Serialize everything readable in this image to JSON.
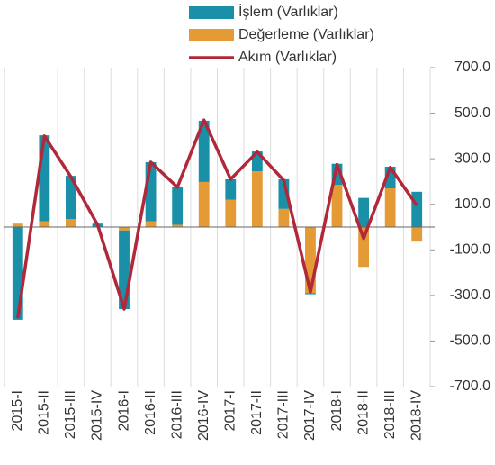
{
  "chart_data": {
    "type": "bar",
    "categories": [
      "2015-I",
      "2015-II",
      "2015-III",
      "2015-IV",
      "2016-I",
      "2016-II",
      "2016-III",
      "2016-IV",
      "2017-I",
      "2017-II",
      "2017-III",
      "2017-IV",
      "2018-I",
      "2018-II",
      "2018-III",
      "2018-IV"
    ],
    "series": [
      {
        "name": "Değerleme (Varlıklar)",
        "color": "#e49a35",
        "kind": "bar",
        "values": [
          15,
          25,
          35,
          0,
          -15,
          25,
          10,
          198,
          120,
          245,
          80,
          -290,
          185,
          -175,
          170,
          -60
        ]
      },
      {
        "name": "İşlem (Varlıklar)",
        "color": "#1a8fa8",
        "kind": "bar",
        "values": [
          -407,
          378,
          190,
          15,
          -345,
          260,
          168,
          269,
          90,
          87,
          130,
          -5,
          93,
          128,
          95,
          155
        ]
      },
      {
        "name": "Akım (Varlıklar)",
        "color": "#b0283a",
        "kind": "line",
        "values": [
          -400,
          400,
          220,
          10,
          -360,
          285,
          175,
          470,
          210,
          330,
          205,
          -285,
          275,
          -50,
          262,
          95
        ]
      }
    ],
    "legend_order": [
      1,
      0,
      2
    ],
    "ylim": [
      -700,
      700
    ],
    "yticks": [
      {
        "value": 700,
        "label": "700.0"
      },
      {
        "value": 500,
        "label": "500.0"
      },
      {
        "value": 300,
        "label": "300.0"
      },
      {
        "value": 100,
        "label": "100.0"
      },
      {
        "value": -100,
        "label": "-100.0"
      },
      {
        "value": -300,
        "label": "-300.0"
      },
      {
        "value": -500,
        "label": "-500.0"
      },
      {
        "value": -700,
        "label": "-700.0"
      }
    ],
    "grid": true
  }
}
